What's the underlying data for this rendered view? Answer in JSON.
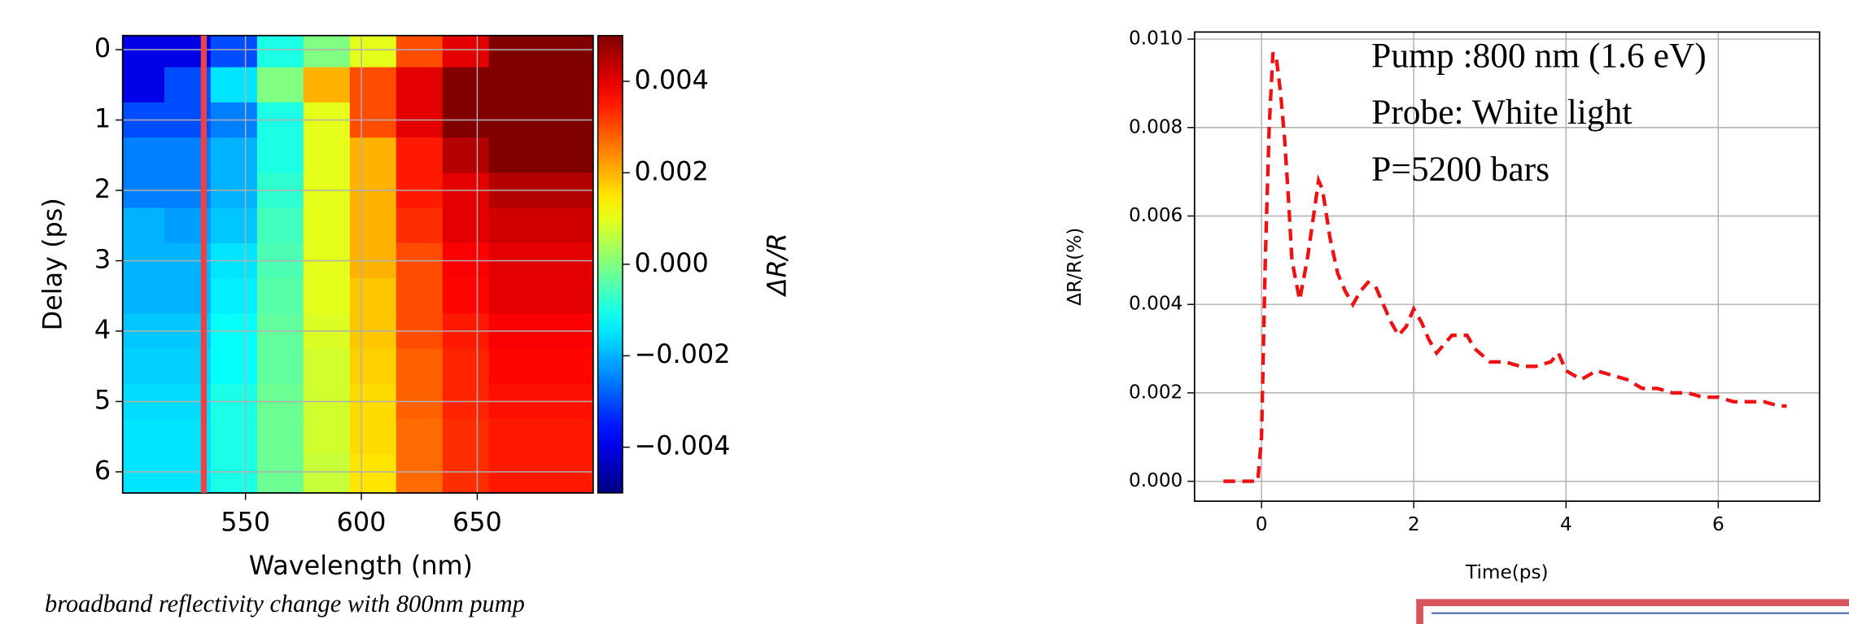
{
  "chart_data": [
    {
      "type": "heatmap",
      "xlabel": "Wavelength (nm)",
      "ylabel": "Delay (ps)",
      "colorbar_label": "ΔR/R",
      "caption": "broadband reflectivity change with 800nm pump",
      "colormap": "jet",
      "grid": true,
      "x": [
        505,
        525,
        545,
        565,
        585,
        605,
        625,
        645,
        665,
        685
      ],
      "y": [
        0,
        0.5,
        1,
        1.5,
        2,
        2.5,
        3,
        3.5,
        4,
        4.5,
        5,
        5.5,
        6
      ],
      "z": [
        [
          -0.004,
          -0.004,
          -0.003,
          -0.001,
          0.0,
          0.001,
          0.003,
          0.004,
          0.005,
          0.005
        ],
        [
          -0.004,
          -0.003,
          -0.0015,
          0.0,
          0.002,
          0.003,
          0.004,
          0.005,
          0.005,
          0.005
        ],
        [
          -0.003,
          -0.003,
          -0.0025,
          -0.001,
          0.001,
          0.003,
          0.004,
          0.005,
          0.005,
          0.005
        ],
        [
          -0.0025,
          -0.0025,
          -0.002,
          -0.001,
          0.001,
          0.002,
          0.0035,
          0.0045,
          0.005,
          0.005
        ],
        [
          -0.0025,
          -0.0025,
          -0.002,
          -0.0008,
          0.001,
          0.002,
          0.0035,
          0.004,
          0.0045,
          0.0045
        ],
        [
          -0.002,
          -0.0022,
          -0.0018,
          -0.0006,
          0.001,
          0.002,
          0.0033,
          0.004,
          0.0042,
          0.0042
        ],
        [
          -0.002,
          -0.002,
          -0.0015,
          -0.0005,
          0.001,
          0.002,
          0.003,
          0.0038,
          0.004,
          0.004
        ],
        [
          -0.002,
          -0.002,
          -0.0014,
          -0.0004,
          0.001,
          0.0018,
          0.003,
          0.0037,
          0.004,
          0.004
        ],
        [
          -0.0018,
          -0.0018,
          -0.0012,
          -0.0003,
          0.0009,
          0.0018,
          0.003,
          0.0035,
          0.0038,
          0.0038
        ],
        [
          -0.0017,
          -0.0017,
          -0.0012,
          -0.0003,
          0.0008,
          0.0017,
          0.0028,
          0.0034,
          0.0037,
          0.0037
        ],
        [
          -0.0016,
          -0.0016,
          -0.001,
          -0.0002,
          0.0008,
          0.0016,
          0.0028,
          0.0034,
          0.0036,
          0.0036
        ],
        [
          -0.0015,
          -0.0015,
          -0.001,
          -0.0002,
          0.0008,
          0.0016,
          0.0027,
          0.0033,
          0.0035,
          0.0035
        ],
        [
          -0.0015,
          -0.0015,
          -0.001,
          -0.0002,
          0.0007,
          0.0015,
          0.0027,
          0.0033,
          0.0035,
          0.0035
        ]
      ],
      "xlim": [
        497,
        700
      ],
      "xticks": [
        550,
        600,
        650
      ],
      "ylim": [
        6.3,
        -0.2
      ],
      "yticks": [
        0,
        1,
        2,
        3,
        4,
        5,
        6
      ],
      "clim": [
        -0.005,
        0.005
      ],
      "cticks": [
        {
          "value": -0.004,
          "label": "−0.004"
        },
        {
          "value": -0.002,
          "label": "−0.002"
        },
        {
          "value": 0,
          "label": "0.000"
        },
        0.002,
        0.004
      ],
      "marker_line": {
        "x": 532,
        "color": "#e8434a"
      }
    },
    {
      "type": "line",
      "xlabel": "Time(ps)",
      "ylabel": "ΔR/R(%)",
      "annotations": [
        "Pump :800 nm (1.6 eV)",
        "Probe: White light",
        "P=5200 bars"
      ],
      "color": "#ee1111",
      "line_style": "dashed",
      "grid": true,
      "x": [
        -0.5,
        -0.05,
        0,
        0.05,
        0.1,
        0.15,
        0.2,
        0.25,
        0.3,
        0.35,
        0.4,
        0.5,
        0.6,
        0.7,
        0.75,
        0.8,
        0.9,
        1.0,
        1.1,
        1.2,
        1.3,
        1.4,
        1.5,
        1.6,
        1.7,
        1.8,
        1.9,
        2.0,
        2.1,
        2.2,
        2.3,
        2.4,
        2.5,
        2.7,
        2.8,
        3.0,
        3.2,
        3.4,
        3.6,
        3.8,
        3.9,
        4.0,
        4.2,
        4.4,
        4.6,
        4.8,
        5.0,
        5.2,
        5.4,
        5.6,
        5.8,
        6.0,
        6.2,
        6.4,
        6.6,
        6.8,
        6.9
      ],
      "values": [
        0,
        0,
        0.001,
        0.005,
        0.008,
        0.0097,
        0.0095,
        0.0088,
        0.0078,
        0.0065,
        0.005,
        0.0041,
        0.005,
        0.0062,
        0.0068,
        0.0066,
        0.0055,
        0.0047,
        0.0043,
        0.004,
        0.0043,
        0.0045,
        0.0044,
        0.004,
        0.0036,
        0.0033,
        0.0035,
        0.0039,
        0.0036,
        0.0032,
        0.0029,
        0.0031,
        0.0033,
        0.0033,
        0.003,
        0.0027,
        0.0027,
        0.0026,
        0.0026,
        0.0027,
        0.0029,
        0.0025,
        0.0023,
        0.0025,
        0.0024,
        0.0023,
        0.0021,
        0.0021,
        0.002,
        0.002,
        0.0019,
        0.0019,
        0.0018,
        0.0018,
        0.0018,
        0.0017,
        0.0017
      ],
      "xlim": [
        -0.88,
        7.33
      ],
      "xticks": [
        0,
        2,
        4,
        6
      ],
      "ylim": [
        -0.00045,
        0.01016
      ],
      "yticks": [
        {
          "value": 0,
          "label": "0.000"
        },
        0.002,
        0.004,
        0.006,
        0.008,
        {
          "value": 0.01,
          "label": "0.010"
        }
      ]
    }
  ]
}
